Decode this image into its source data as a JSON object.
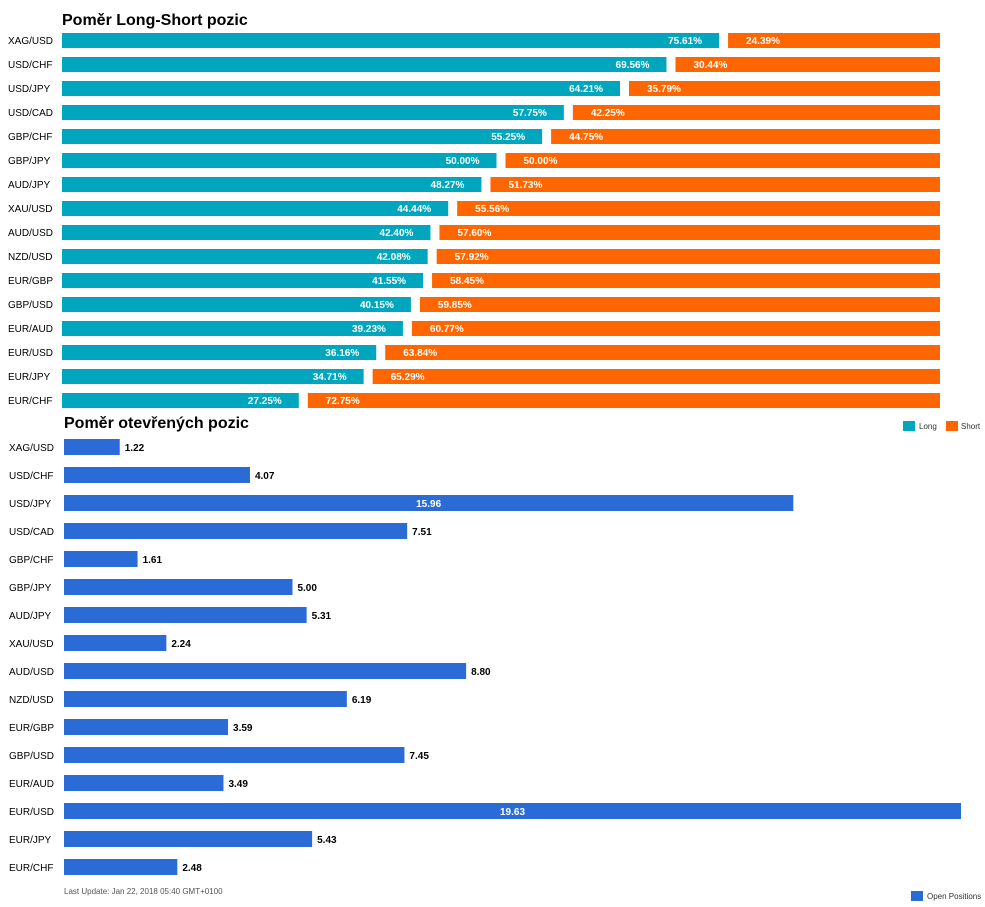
{
  "chart_data": [
    {
      "type": "bar",
      "orientation": "horizontal",
      "stacked": true,
      "title": "Poměr Long-Short pozic",
      "categories": [
        "XAG/USD",
        "USD/CHF",
        "USD/JPY",
        "USD/CAD",
        "GBP/CHF",
        "GBP/JPY",
        "AUD/JPY",
        "XAU/USD",
        "AUD/USD",
        "NZD/USD",
        "EUR/GBP",
        "GBP/USD",
        "EUR/AUD",
        "EUR/USD",
        "EUR/JPY",
        "EUR/CHF"
      ],
      "series": [
        {
          "name": "Long",
          "color": "#00a6be",
          "values": [
            75.61,
            69.56,
            64.21,
            57.75,
            55.25,
            50.0,
            48.27,
            44.44,
            42.4,
            42.08,
            41.55,
            40.15,
            39.23,
            36.16,
            34.71,
            27.25
          ],
          "labels": [
            "75.61%",
            "69.56%",
            "64.21%",
            "57.75%",
            "55.25%",
            "50.00%",
            "48.27%",
            "44.44%",
            "42.40%",
            "42.08%",
            "41.55%",
            "40.15%",
            "39.23%",
            "36.16%",
            "34.71%",
            "27.25%"
          ]
        },
        {
          "name": "Short",
          "color": "#ff6600",
          "values": [
            24.39,
            30.44,
            35.79,
            42.25,
            44.75,
            50.0,
            51.73,
            55.56,
            57.6,
            57.92,
            58.45,
            59.85,
            60.77,
            63.84,
            65.29,
            72.75
          ],
          "labels": [
            "24.39%",
            "30.44%",
            "35.79%",
            "42.25%",
            "44.75%",
            "50.00%",
            "51.73%",
            "55.56%",
            "57.60%",
            "57.92%",
            "58.45%",
            "59.85%",
            "60.77%",
            "63.84%",
            "65.29%",
            "72.75%"
          ]
        }
      ],
      "xlim": [
        0,
        100
      ],
      "legend": "bottom-right"
    },
    {
      "type": "bar",
      "orientation": "horizontal",
      "title": "Poměr otevřených pozic",
      "categories": [
        "XAG/USD",
        "USD/CHF",
        "USD/JPY",
        "USD/CAD",
        "GBP/CHF",
        "GBP/JPY",
        "AUD/JPY",
        "XAU/USD",
        "AUD/USD",
        "NZD/USD",
        "EUR/GBP",
        "GBP/USD",
        "EUR/AUD",
        "EUR/USD",
        "EUR/JPY",
        "EUR/CHF"
      ],
      "series": [
        {
          "name": "Open Positions",
          "color": "#2b6bd6",
          "values": [
            1.22,
            4.07,
            15.96,
            7.51,
            1.61,
            5.0,
            5.31,
            2.24,
            8.8,
            6.19,
            3.59,
            7.45,
            3.49,
            19.63,
            5.43,
            2.48
          ],
          "labels": [
            "1.22",
            "4.07",
            "15.96",
            "7.51",
            "1.61",
            "5.00",
            "5.31",
            "2.24",
            "8.80",
            "6.19",
            "3.59",
            "7.45",
            "3.49",
            "19.63",
            "5.43",
            "2.48"
          ]
        }
      ],
      "xlim": [
        0,
        19.63
      ],
      "legend": "bottom-right"
    }
  ],
  "footer": {
    "last_update": "Last Update: Jan 22, 2018 05:40 GMT+0100"
  }
}
